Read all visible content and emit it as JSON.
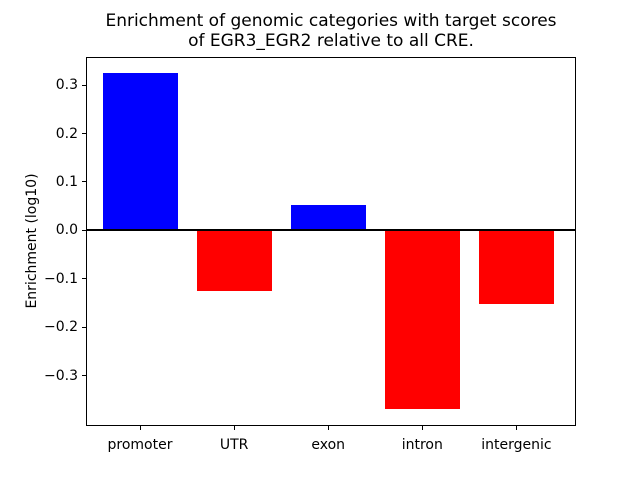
{
  "figure": {
    "background_color": "#ffffff",
    "axis_color": "#000000"
  },
  "chart_data": {
    "type": "bar",
    "title": "Enrichment of genomic categories with target scores\nof EGR3_EGR2 relative to all CRE.",
    "xlabel": "",
    "ylabel": "Enrichment (log10)",
    "categories": [
      "promoter",
      "UTR",
      "exon",
      "intron",
      "intergenic"
    ],
    "values": [
      0.325,
      -0.125,
      0.052,
      -0.368,
      -0.152
    ],
    "bar_colors": [
      "#0000ff",
      "#ff0000",
      "#0000ff",
      "#ff0000",
      "#ff0000"
    ],
    "positive_color": "#0000ff",
    "negative_color": "#ff0000",
    "ylim": [
      -0.404,
      0.358
    ],
    "yticks": [
      0.3,
      0.2,
      0.1,
      0.0,
      -0.1,
      -0.2,
      -0.3
    ],
    "ytick_labels": [
      "0.3",
      "0.2",
      "0.1",
      "0.0",
      "−0.1",
      "−0.2",
      "−0.3"
    ],
    "zero_line": true,
    "grid": false,
    "legend": null
  }
}
